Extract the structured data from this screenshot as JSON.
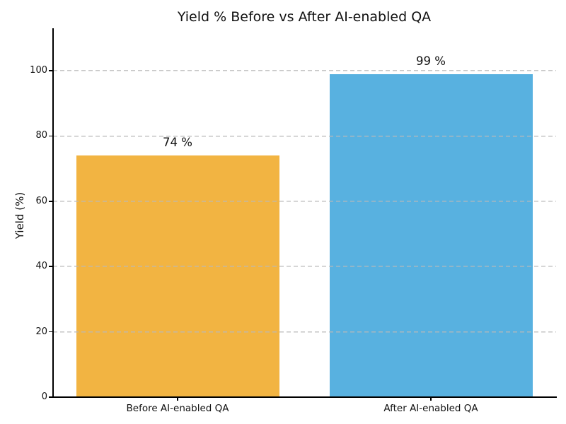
{
  "chart_data": {
    "type": "bar",
    "title": "Yield % Before vs After AI-enabled QA",
    "ylabel": "Yield (%)",
    "xlabel": "",
    "categories": [
      "Before AI-enabled QA",
      "After AI-enabled QA"
    ],
    "values": [
      74,
      99
    ],
    "value_labels": [
      "74 %",
      "99 %"
    ],
    "bar_colors": [
      "#F2B442",
      "#58B1E0"
    ],
    "yticks": [
      0,
      20,
      40,
      60,
      80,
      100
    ],
    "ylim": [
      0,
      113
    ],
    "grid": {
      "axis": "y",
      "style": "dashed",
      "color": "#C4C4C4",
      "above_bars": true
    },
    "legend_visible": false,
    "background": "#FFFFFF",
    "text_color": "#111111",
    "spine_color": "#000000"
  }
}
